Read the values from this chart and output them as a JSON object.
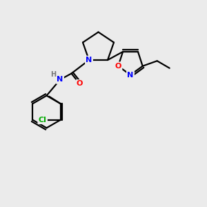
{
  "bg_color": "#ebebeb",
  "bond_color": "#000000",
  "atom_colors": {
    "N": "#0000ff",
    "O": "#ff0000",
    "Cl": "#00aa00",
    "H": "#777777",
    "C": "#000000"
  }
}
